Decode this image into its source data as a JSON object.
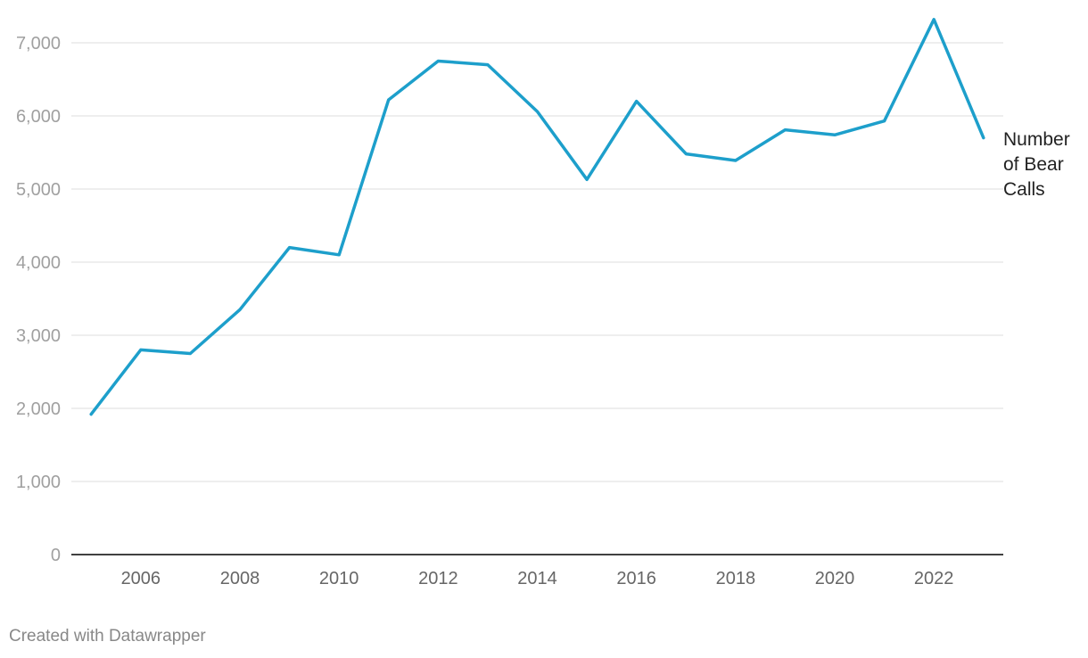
{
  "chart_data": {
    "type": "line",
    "x": [
      2005,
      2006,
      2007,
      2008,
      2009,
      2010,
      2011,
      2012,
      2013,
      2014,
      2015,
      2016,
      2017,
      2018,
      2019,
      2020,
      2021,
      2022,
      2023
    ],
    "series": [
      {
        "name": "Number of Bear Calls",
        "values": [
          1920,
          2800,
          2750,
          3350,
          4200,
          4100,
          6220,
          6750,
          6700,
          6060,
          5130,
          6200,
          5480,
          5390,
          5810,
          5740,
          5930,
          7320,
          5700
        ],
        "color": "#1d9fcb"
      }
    ],
    "xlim": [
      2004.6,
      2023.4
    ],
    "ylim": [
      0,
      7000
    ],
    "y_ticks": [
      "0",
      "1,000",
      "2,000",
      "3,000",
      "4,000",
      "5,000",
      "6,000",
      "7,000"
    ],
    "x_ticks": [
      "2006",
      "2008",
      "2010",
      "2012",
      "2014",
      "2016",
      "2018",
      "2020",
      "2022"
    ],
    "series_label_lines": [
      "Number",
      "of Bear",
      "Calls"
    ],
    "grid": true,
    "legend": "direct label at line end (right)",
    "title": "",
    "xlabel": "",
    "ylabel": ""
  },
  "footer": {
    "credit": "Created with Datawrapper"
  }
}
